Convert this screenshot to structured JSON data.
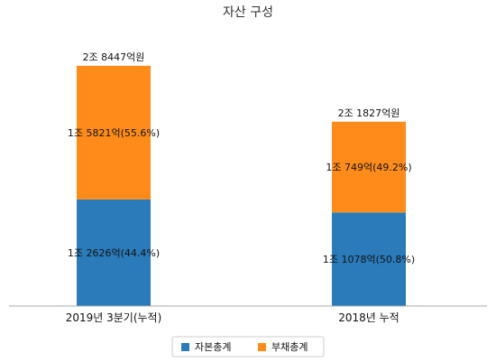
{
  "chart_data": {
    "type": "bar",
    "stacked": true,
    "title": "자산 구성",
    "categories": [
      "2019년 3분기(누적)",
      "2018년 누적"
    ],
    "totals": [
      "2조 8447억원",
      "2조 1827억원"
    ],
    "totals_value": [
      28447,
      21827
    ],
    "unit": "억원",
    "series": [
      {
        "name": "자본총계",
        "values": [
          12626,
          11078
        ],
        "labels": [
          "1조 2626억(44.4%)",
          "1조 1078억(50.8%)"
        ],
        "color": "#2b7bba"
      },
      {
        "name": "부채총계",
        "values": [
          15821,
          10749
        ],
        "labels": [
          "1조 5821억(55.6%)",
          "1조 749억(49.2%)"
        ],
        "color": "#ff8c1a"
      }
    ],
    "ylim": [
      0,
      31000
    ],
    "grid": false,
    "legend": "bottom"
  }
}
